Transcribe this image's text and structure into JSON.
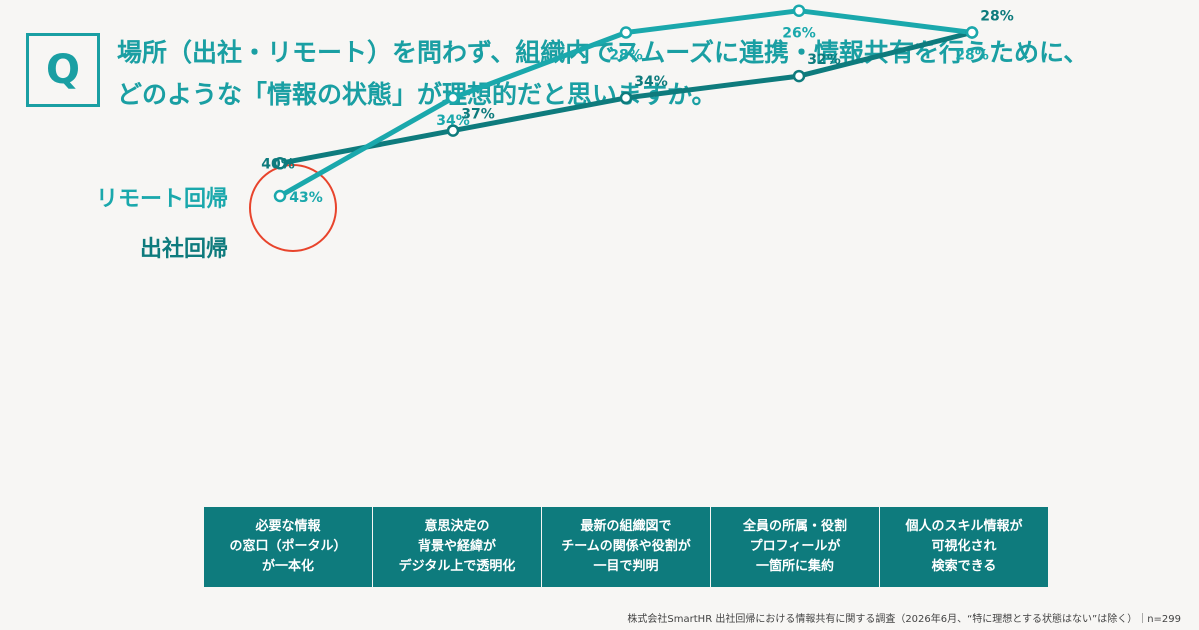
{
  "question": {
    "badge": "Q",
    "line1": "場所（出社・リモート）を問わず、組織内でスムーズに連携・情報共有を行うために、",
    "line2": "どのような「情報の状態」が理想的だと思いますか。"
  },
  "colors": {
    "remote": "#1aa8ac",
    "office": "#0e7b7d",
    "highlight": "#e8442c",
    "table_bg": "#0e7b7d"
  },
  "chart_data": {
    "type": "line",
    "categories": [
      "必要な情報\nの窓口（ポータル）\nが一本化",
      "意思決定の\n背景や経緯が\nデジタル上で透明化",
      "最新の組織図で\nチームの関係や役割が\n一目で判明",
      "全員の所属・役割\nプロフィールが\n一箇所に集約",
      "個人のスキル情報が\n可視化され\n検索できる"
    ],
    "series": [
      {
        "name": "リモート回帰",
        "values": [
          43,
          34,
          28,
          26,
          28
        ],
        "labels": [
          "43%",
          "34%",
          "28%",
          "26%",
          "28%"
        ]
      },
      {
        "name": "出社回帰",
        "values": [
          40,
          37,
          34,
          32,
          28
        ],
        "labels": [
          "40%",
          "37%",
          "34%",
          "32%",
          "28%"
        ]
      }
    ],
    "highlight_category_index": 0
  },
  "source": "株式会社SmartHR 出社回帰における情報共有に関する調査（2026年6月、“特に理想とする状態はない”は除く）｜n=299"
}
